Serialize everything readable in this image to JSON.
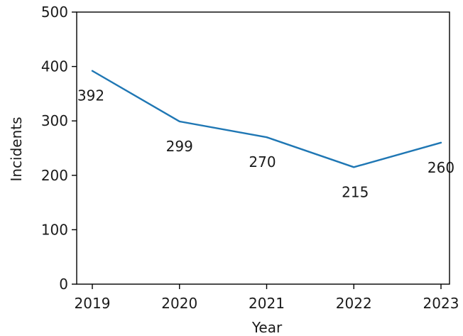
{
  "chart_data": {
    "type": "line",
    "title": "",
    "xlabel": "Year",
    "ylabel": "Incidents",
    "x": [
      "2019",
      "2020",
      "2021",
      "2022",
      "2023"
    ],
    "series": [
      {
        "values": [
          392,
          299,
          270,
          215,
          260
        ],
        "color": "#1f77b4"
      }
    ],
    "data_labels": [
      "392",
      "299",
      "270",
      "215",
      "260"
    ],
    "ylim": [
      0,
      500
    ],
    "yticks": [
      0,
      100,
      200,
      300,
      400,
      500
    ],
    "ytick_labels": [
      "0",
      "100",
      "200",
      "300",
      "400",
      "500"
    ],
    "grid": false,
    "legend": "none"
  }
}
